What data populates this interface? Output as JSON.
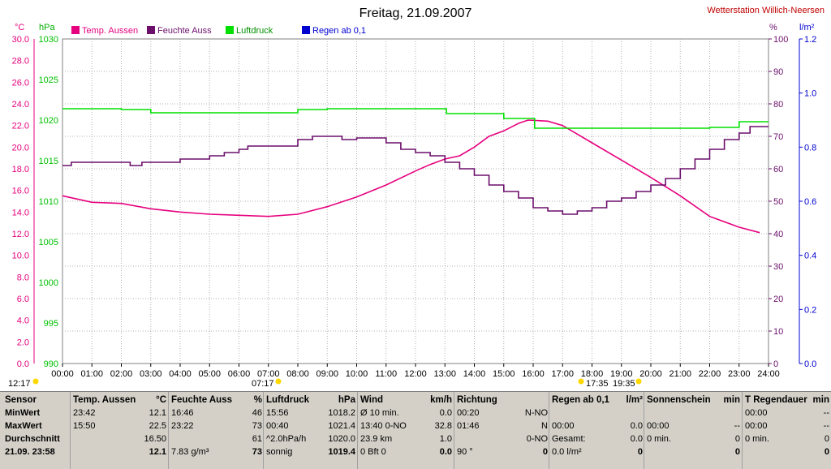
{
  "title": "Freitag, 21.09.2007",
  "station": "Wetterstation Willich-Neersen",
  "legend": [
    {
      "label": "Temp. Aussen",
      "color": "#e6007e"
    },
    {
      "label": "Feuchte Auss",
      "color": "#6b0f6b"
    },
    {
      "label": "Luftdruck",
      "color": "#00e000"
    },
    {
      "label": "Regen ab 0,1",
      "color": "#0000d0"
    }
  ],
  "axis_units": {
    "temp": "°C",
    "pressure": "hPa",
    "humidity": "%",
    "rain": "l/m²"
  },
  "sun": {
    "sunrise": "07:17",
    "sunset": "19:35",
    "sunrise_left": "12:17",
    "sunset_left": "17:35"
  },
  "chart_data": {
    "type": "line",
    "title": "Freitag, 21.09.2007",
    "x": [
      "00:00",
      "01:00",
      "02:00",
      "03:00",
      "04:00",
      "05:00",
      "06:00",
      "07:00",
      "08:00",
      "09:00",
      "10:00",
      "11:00",
      "12:00",
      "13:00",
      "14:00",
      "15:00",
      "16:00",
      "17:00",
      "18:00",
      "19:00",
      "20:00",
      "21:00",
      "22:00",
      "23:00",
      "24:00"
    ],
    "temp_ticks": [
      "0.0",
      "2.0",
      "4.0",
      "6.0",
      "8.0",
      "10.0",
      "12.0",
      "14.0",
      "16.0",
      "18.0",
      "20.0",
      "22.0",
      "24.0",
      "26.0",
      "28.0",
      "30.0"
    ],
    "pressure_ticks": [
      "990",
      "995",
      "1000",
      "1005",
      "1010",
      "1015",
      "1020",
      "1025",
      "1030"
    ],
    "humidity_ticks": [
      "0",
      "10",
      "20",
      "30",
      "40",
      "50",
      "60",
      "70",
      "80",
      "90",
      "100"
    ],
    "rain_ticks": [
      "0.0",
      "0.2",
      "0.4",
      "0.6",
      "0.8",
      "1.0",
      "1.2"
    ],
    "ylim_temp": [
      0,
      30
    ],
    "ylim_pressure": [
      990,
      1030
    ],
    "ylim_humidity": [
      0,
      100
    ],
    "ylim_rain": [
      0,
      1.2
    ],
    "grid": true,
    "series": [
      {
        "name": "Temp. Aussen",
        "axis": "temp",
        "color": "#e6007e",
        "points": [
          [
            0,
            15.5
          ],
          [
            0.5,
            15.2
          ],
          [
            1,
            14.9
          ],
          [
            2,
            14.8
          ],
          [
            3,
            14.3
          ],
          [
            4,
            14.0
          ],
          [
            5,
            13.8
          ],
          [
            6,
            13.7
          ],
          [
            7,
            13.6
          ],
          [
            8,
            13.8
          ],
          [
            9,
            14.5
          ],
          [
            10,
            15.4
          ],
          [
            11,
            16.5
          ],
          [
            12,
            17.8
          ],
          [
            12.5,
            18.4
          ],
          [
            13,
            18.9
          ],
          [
            13.5,
            19.2
          ],
          [
            14,
            20.0
          ],
          [
            14.5,
            21.0
          ],
          [
            15,
            21.5
          ],
          [
            15.5,
            22.2
          ],
          [
            15.83,
            22.5
          ],
          [
            16.5,
            22.4
          ],
          [
            17,
            22.0
          ],
          [
            17.5,
            21.2
          ],
          [
            18,
            20.4
          ],
          [
            19,
            18.8
          ],
          [
            20,
            17.2
          ],
          [
            21,
            15.5
          ],
          [
            22,
            13.6
          ],
          [
            23,
            12.6
          ],
          [
            23.7,
            12.1
          ]
        ]
      },
      {
        "name": "Feuchte Auss",
        "axis": "humidity",
        "color": "#6b0f6b",
        "points": [
          [
            0,
            61
          ],
          [
            0.3,
            62
          ],
          [
            1,
            62
          ],
          [
            2,
            62
          ],
          [
            2.3,
            61
          ],
          [
            2.7,
            62
          ],
          [
            3,
            62
          ],
          [
            4,
            63
          ],
          [
            5,
            64
          ],
          [
            5.5,
            65
          ],
          [
            6,
            66
          ],
          [
            6.3,
            67
          ],
          [
            7,
            67
          ],
          [
            8,
            69
          ],
          [
            8.5,
            70
          ],
          [
            9,
            70
          ],
          [
            9.5,
            69
          ],
          [
            10,
            69.5
          ],
          [
            11,
            68
          ],
          [
            11.5,
            66
          ],
          [
            12,
            65
          ],
          [
            12.5,
            64
          ],
          [
            13,
            62
          ],
          [
            13.5,
            60
          ],
          [
            14,
            58
          ],
          [
            14.5,
            55
          ],
          [
            15,
            53
          ],
          [
            15.5,
            51
          ],
          [
            16,
            48
          ],
          [
            16.5,
            47
          ],
          [
            17,
            46
          ],
          [
            17.5,
            47
          ],
          [
            18,
            48
          ],
          [
            18.5,
            50
          ],
          [
            19,
            51
          ],
          [
            19.5,
            53
          ],
          [
            20,
            55
          ],
          [
            20.5,
            57
          ],
          [
            21,
            60
          ],
          [
            21.5,
            63
          ],
          [
            22,
            66
          ],
          [
            22.5,
            69
          ],
          [
            23,
            71
          ],
          [
            23.37,
            73
          ],
          [
            24,
            73
          ]
        ]
      },
      {
        "name": "Luftdruck",
        "axis": "pressure",
        "color": "#00e000",
        "points": [
          [
            0,
            1021.4
          ],
          [
            1,
            1021.4
          ],
          [
            2,
            1021.3
          ],
          [
            3,
            1020.9
          ],
          [
            4,
            1020.9
          ],
          [
            5,
            1020.9
          ],
          [
            6,
            1020.9
          ],
          [
            7,
            1020.9
          ],
          [
            8,
            1021.3
          ],
          [
            9,
            1021.4
          ],
          [
            10,
            1021.4
          ],
          [
            11,
            1021.4
          ],
          [
            12,
            1021.4
          ],
          [
            13,
            1021.4
          ],
          [
            13.05,
            1020.8
          ],
          [
            14,
            1020.8
          ],
          [
            14.95,
            1020.8
          ],
          [
            15,
            1020.2
          ],
          [
            16,
            1020.2
          ],
          [
            16.05,
            1019.0
          ],
          [
            17,
            1019.0
          ],
          [
            18,
            1019.0
          ],
          [
            19,
            1019.0
          ],
          [
            20,
            1019.0
          ],
          [
            21,
            1019.0
          ],
          [
            22,
            1019.1
          ],
          [
            22.9,
            1019.1
          ],
          [
            23,
            1019.8
          ],
          [
            24,
            1019.8
          ]
        ]
      },
      {
        "name": "Regen ab 0,1",
        "axis": "rain",
        "color": "#0000d0",
        "points": []
      }
    ]
  },
  "table": {
    "row_labels": [
      "Sensor",
      "MinWert",
      "MaxWert",
      "Durchschnitt",
      "21.09. 23:58"
    ],
    "columns": [
      {
        "header": "Temp. Aussen",
        "unit": "°C",
        "rows": [
          [
            "23:42",
            "12.1"
          ],
          [
            "15:50",
            "22.5"
          ],
          [
            "",
            "16.50"
          ],
          [
            "",
            "12.1"
          ]
        ]
      },
      {
        "header": "Feuchte Auss",
        "unit": "%",
        "rows": [
          [
            "16:46",
            "46"
          ],
          [
            "23:22",
            "73"
          ],
          [
            "",
            "61"
          ],
          [
            "7.83 g/m³",
            "73"
          ]
        ]
      },
      {
        "header": "Luftdruck",
        "unit": "hPa",
        "rows": [
          [
            "15:56",
            "1018.2"
          ],
          [
            "00:40",
            "1021.4"
          ],
          [
            "^2.0hPa/h",
            "1020.0"
          ],
          [
            "sonnig",
            "1019.4"
          ]
        ]
      },
      {
        "header": "Wind",
        "unit": "km/h",
        "rows": [
          [
            "Ø 10 min.",
            "0.0"
          ],
          [
            "13:40   0-NO",
            "32.8"
          ],
          [
            "23.9 km",
            "1.0"
          ],
          [
            "0 Bft 0",
            "0.0"
          ]
        ]
      },
      {
        "header": "Richtung",
        "unit": "",
        "rows": [
          [
            "00:20",
            "N-NO"
          ],
          [
            "01:46",
            "N"
          ],
          [
            "",
            "0-NO"
          ],
          [
            "90 °",
            "0"
          ]
        ]
      },
      {
        "header": "Regen ab 0,1",
        "unit": "l/m²",
        "rows": [
          [
            "",
            ""
          ],
          [
            "00:00",
            "0.0"
          ],
          [
            "Gesamt:",
            "0.0"
          ],
          [
            "0.0 l/m²",
            "0"
          ]
        ]
      },
      {
        "header": "Sonnenschein",
        "unit": "min",
        "rows": [
          [
            "",
            ""
          ],
          [
            "00:00",
            "--"
          ],
          [
            "0 min.",
            "0"
          ],
          [
            "",
            "0"
          ]
        ]
      },
      {
        "header": "T Regendauer",
        "unit": "min",
        "rows": [
          [
            "00:00",
            "--"
          ],
          [
            "00:00",
            "--"
          ],
          [
            "0 min.",
            "0"
          ],
          [
            "",
            "0"
          ]
        ]
      }
    ]
  }
}
